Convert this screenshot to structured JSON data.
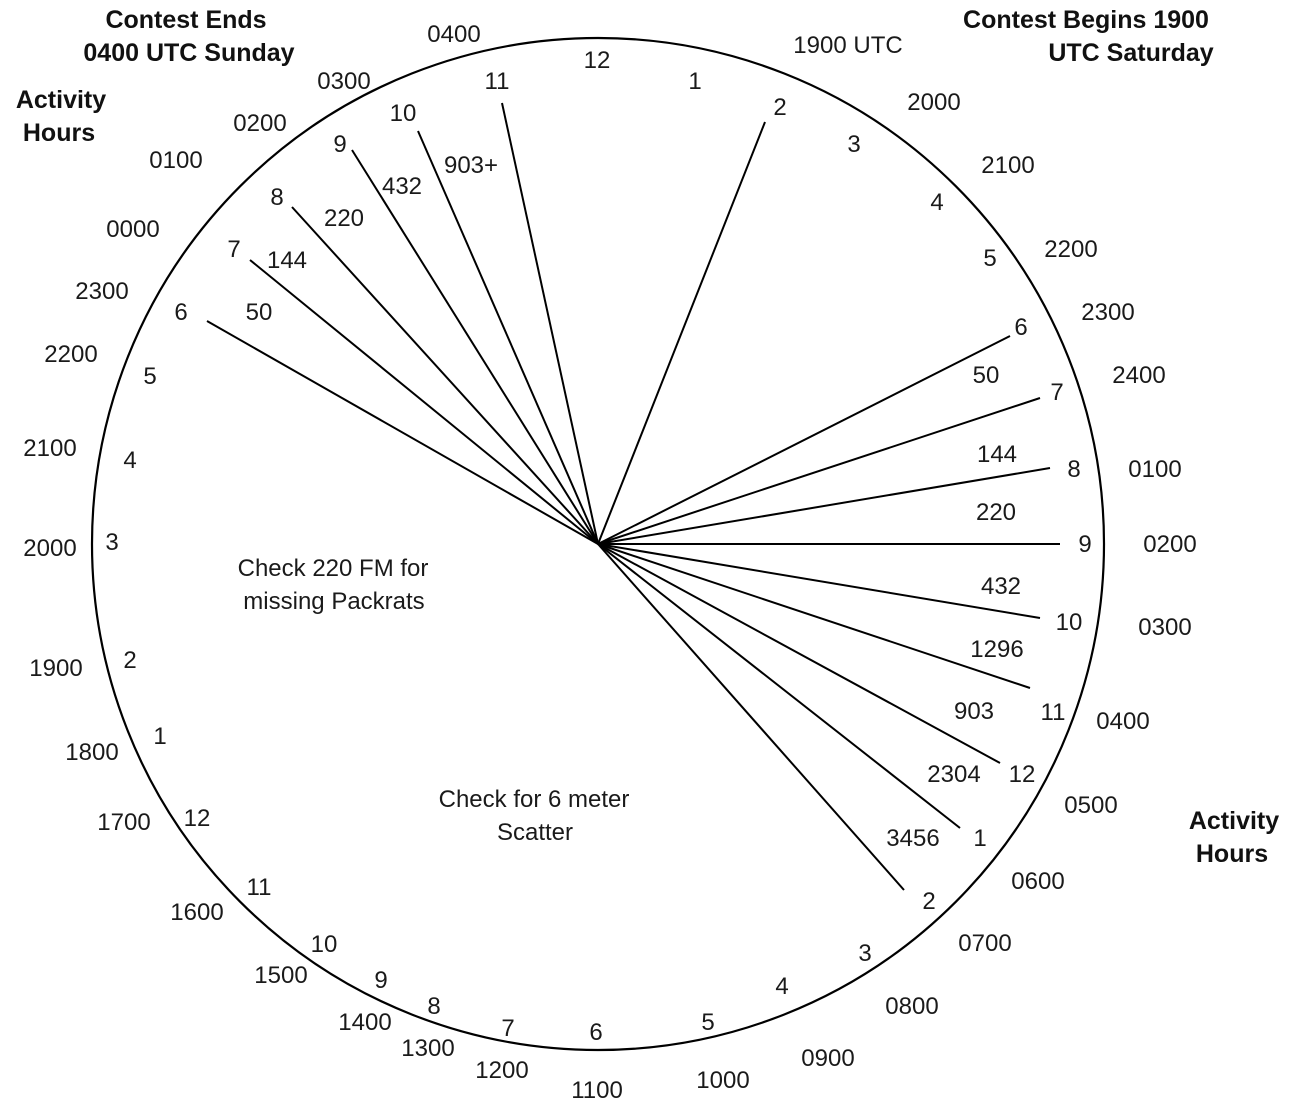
{
  "headings": {
    "end": [
      "Contest Ends",
      "0400 UTC Sunday"
    ],
    "begin": [
      "Contest Begins 1900",
      "UTC Saturday"
    ],
    "activity_left": [
      "Activity",
      "Hours"
    ],
    "activity_right": [
      "Activity",
      "Hours"
    ]
  },
  "notes": {
    "fm": [
      "Check 220 FM for",
      "missing Packrats"
    ],
    "scatter": [
      "Check for 6 meter",
      "Scatter"
    ]
  },
  "outer_times_right": [
    "1900 UTC",
    "2000",
    "2100",
    "2200",
    "2300",
    "2400",
    "0100",
    "0200",
    "0300",
    "0400",
    "0500",
    "0600",
    "0700",
    "0800",
    "0900",
    "1000",
    "1100"
  ],
  "outer_times_left": [
    "1200",
    "1300",
    "1400",
    "1500",
    "1600",
    "1700",
    "1800",
    "1900",
    "2000",
    "2100",
    "2200",
    "2300",
    "0000",
    "0100",
    "0200",
    "0300",
    "0400"
  ],
  "inner_hours_right": [
    "1",
    "2",
    "3",
    "4",
    "5",
    "6",
    "7",
    "8",
    "9",
    "10",
    "11",
    "12",
    "1",
    "2",
    "3",
    "4",
    "5",
    "6"
  ],
  "inner_hours_left": [
    "7",
    "8",
    "9",
    "10",
    "11",
    "12",
    "1",
    "2",
    "3",
    "4",
    "5",
    "6",
    "7",
    "8",
    "9",
    "10",
    "11",
    "12"
  ],
  "bands_right": [
    "50",
    "144",
    "220",
    "432",
    "1296",
    "903",
    "2304",
    "3456"
  ],
  "bands_left": [
    "50",
    "144",
    "220",
    "432",
    "903+"
  ]
}
